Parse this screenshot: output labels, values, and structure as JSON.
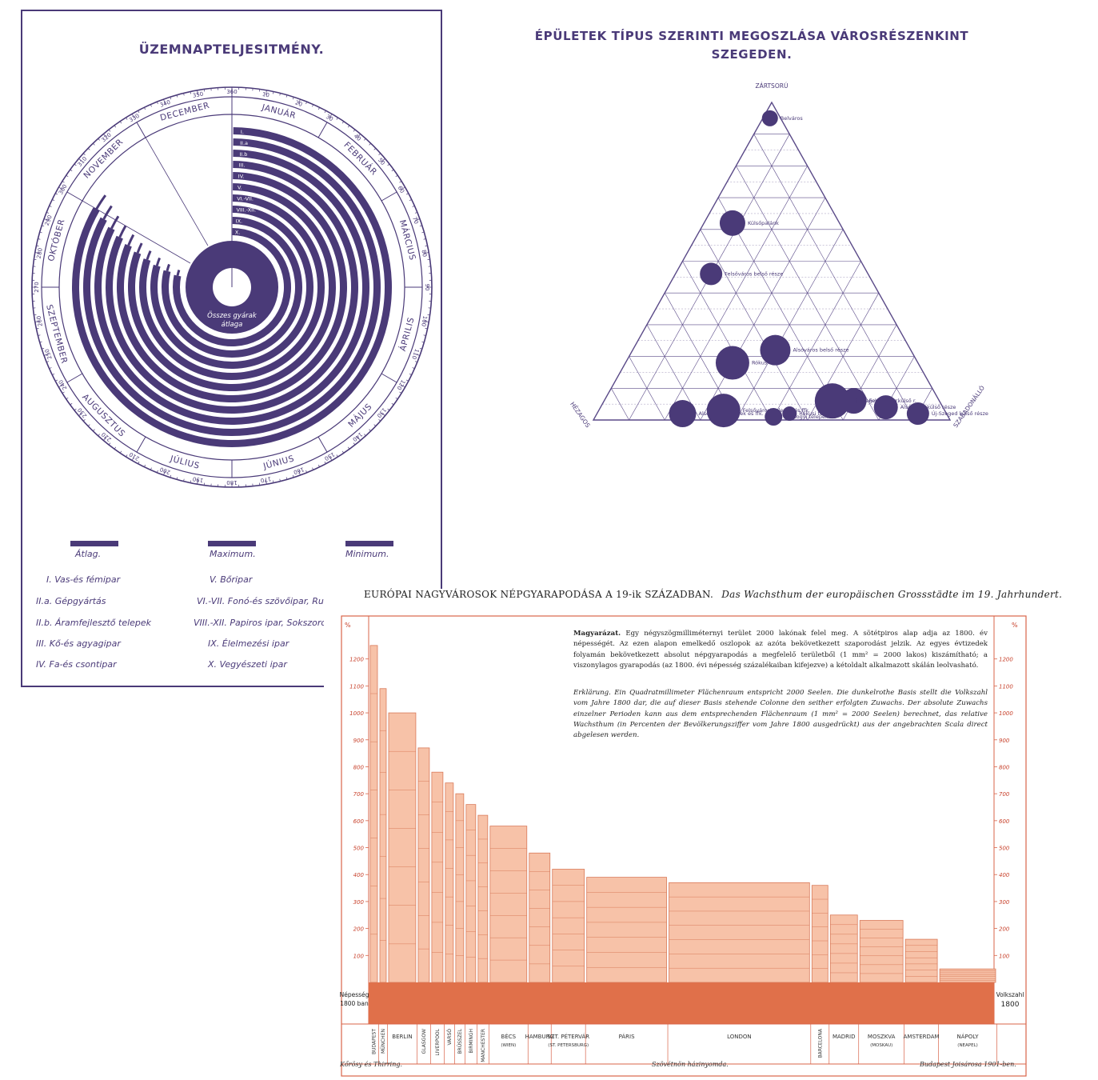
{
  "circular_chart": {
    "title": "ÜZEMNAPTELJESITMÉNY.",
    "months": [
      "JANUÁR",
      "FEBRUÁR",
      "MÁRCIUS",
      "ÁPRILIS",
      "MÁJUS",
      "JÚNIUS",
      "JÚLIUS",
      "AUGUSZTUS",
      "SZEPTEMBER",
      "OKTÓBER",
      "NOVEMBER",
      "DECEMBER"
    ],
    "scale_labels": [
      "10",
      "20",
      "30",
      "40",
      "50",
      "60",
      "70",
      "80",
      "90",
      "100",
      "110",
      "120",
      "130",
      "140",
      "150",
      "160",
      "170",
      "180",
      "190",
      "200",
      "210",
      "220",
      "230",
      "240",
      "250",
      "260",
      "270",
      "280",
      "290",
      "300",
      "310",
      "320",
      "330",
      "340",
      "350",
      "360"
    ],
    "ring_labels": [
      "I.",
      "II.a",
      "II.b",
      "III.",
      "IV.",
      "V.",
      "VI.-VII.",
      "VIII.-XII.",
      "IX.",
      "X."
    ],
    "center_label": [
      "Összes gyárak",
      "átlaga"
    ],
    "legend": [
      {
        "label": "Átlag."
      },
      {
        "label": "Maximum."
      },
      {
        "label": "Minimum."
      }
    ],
    "industries": [
      "I. Vas-és fémipar",
      "II.a. Gépgyártás",
      "II.b. Áramfejlesztő telepek",
      "III. Kő-és agyagipar",
      "IV. Fa-és csontipar",
      "V. Bőripar",
      "VI.-VII. Fonó-és szövőipar, Ruház",
      "VIII.-XII. Papiros ipar, Sokszoros",
      "IX. Élelmezési ipar",
      "X. Vegyészeti ipar"
    ],
    "colors": {
      "ink": "#4a3a78"
    }
  },
  "ternary_chart": {
    "title": [
      "ÉPÜLETEK TÍPUS SZERINTI MEGOSZLÁSA VÁROSRÉSZENKINT",
      "SZEGEDEN."
    ],
    "vertices": {
      "top": "ZÁRTSORÚ",
      "left": "HÉZAGOS",
      "right": "SZABADONÁLLÓ"
    },
    "points": [
      {
        "name": "Belváros"
      },
      {
        "name": "Külsőpalánk"
      },
      {
        "name": "Felsőváros belső része"
      },
      {
        "name": "Alsóváros belső része"
      },
      {
        "name": "Rókus"
      },
      {
        "name": "Felsőváros külső r."
      },
      {
        "name": "Új-Szeged belső r."
      },
      {
        "name": "Alsóváros külső része"
      },
      {
        "name": "Alsóvárosi telepek és ffk."
      },
      {
        "name": "Felsővárosi telepek és ffk."
      },
      {
        "name": "Rókusi telepek"
      },
      {
        "name": "Somogyi telepek"
      },
      {
        "name": "Új-Szeged külső része"
      }
    ],
    "colors": {
      "ink": "#4a3a78",
      "grid": "#5a4a88"
    }
  },
  "growth_chart": {
    "title_hu": "EURÓPAI NAGYVÁROSOK NÉPGYARAPODÁSA A 19-ik SZÁZADBAN.",
    "title_de": "Das Wachsthum der europäischen Grossstädte im 19. Jahrhundert.",
    "note_hu_label": "Magyarázat.",
    "note_hu": "Egy négyszögmilliméternyi terület 2000 lakónak felel meg. A sötétpiros alap adja az 1800. év népességét. Az ezen alapon emelkedő oszlopok az azóta bekövetkezett szaporodást jelzik. Az egyes évtizedek folyamán bekövetkezett absolut népgyarapodás a megfelelő területből (1 mm² = 2000 lakos) kiszámítható; a viszonylagos gyarapodás (az 1800. évi népesség százalékaiban kifejezve) a kétoldalt alkalmazott skálán leolvasható.",
    "note_de_label": "Erklärung.",
    "note_de": "Ein Quadratmillimeter Flächenraum entspricht 2000 Seelen. Die dunkelrothe Basis stellt die Volkszahl vom Jahre 1800 dar, die auf dieser Basis stehende Colonne den seither erfolgten Zuwachs. Der absolute Zuwachs einzelner Perioden kann aus dem entsprechenden Flächenraum (1 mm² = 2000 Seelen) berechnet, das relative Wachsthum (in Percenten der Bevölkerungsziffer vom Jahre 1800 ausgedrückt) aus der angebrachten Scala direct abgelesen werden.",
    "axis_unit": "%",
    "base_left": [
      "Népesség",
      "1800 ban"
    ],
    "base_right": [
      "Volkszahl",
      "1800"
    ],
    "footer": [
      "Kőrösy és Thirring.",
      "Szövétnön házinyomda.",
      "Budapest Joisárosa 1901-ben."
    ],
    "colors": {
      "base": "#e0704a",
      "bar": "#f7c2a8",
      "bar_edge": "#d97a5a",
      "line": "#d8644a",
      "text": "#c8422c"
    }
  },
  "chart_data": [
    {
      "type": "area",
      "title": "ÜZEMNAPTELJESITMÉNY.",
      "ring_labels": [
        "I.",
        "II.a",
        "II.b",
        "III.",
        "IV.",
        "V.",
        "VI.-VII.",
        "VIII.-XII.",
        "IX.",
        "X."
      ],
      "scale": [
        0,
        360
      ],
      "legend": [
        "Átlag.",
        "Maximum.",
        "Minimum."
      ]
    },
    {
      "type": "scatter",
      "title": "ÉPÜLETEK TÍPUS SZERINTI MEGOSZLÁSA VÁROSRÉSZENKINT SZEGEDEN.",
      "axes": [
        "ZÁRTSORÚ",
        "HÉZAGOS",
        "SZABADONÁLLÓ"
      ],
      "series": [
        {
          "values": [
            {
              "label": "Belváros",
              "z": 0.95,
              "h": 0.03,
              "s": 0.02
            },
            {
              "label": "Külsőpalánk",
              "z": 0.62,
              "h": 0.3,
              "s": 0.08
            },
            {
              "label": "Felsőváros belső része",
              "z": 0.46,
              "h": 0.44,
              "s": 0.1
            },
            {
              "label": "Alsóváros belső része",
              "z": 0.22,
              "h": 0.38,
              "s": 0.4
            },
            {
              "label": "Rókus",
              "z": 0.18,
              "h": 0.52,
              "s": 0.3
            },
            {
              "label": "Felsőváros külső r.",
              "z": 0.06,
              "h": 0.24,
              "s": 0.7
            },
            {
              "label": "Új-Szeged belső r.",
              "z": 0.06,
              "h": 0.3,
              "s": 0.64
            },
            {
              "label": "Alsóváros külső része",
              "z": 0.04,
              "h": 0.16,
              "s": 0.8
            },
            {
              "label": "Alsóvárosi telepek és ffk.",
              "z": 0.02,
              "h": 0.74,
              "s": 0.24
            },
            {
              "label": "Felsővárosi telepek és ffk.",
              "z": 0.03,
              "h": 0.62,
              "s": 0.35
            },
            {
              "label": "Rókusi telepek",
              "z": 0.02,
              "h": 0.44,
              "s": 0.54
            },
            {
              "label": "Somogyi telepek",
              "z": 0.01,
              "h": 0.49,
              "s": 0.5
            },
            {
              "label": "Új-Szeged külső része",
              "z": 0.02,
              "h": 0.08,
              "s": 0.9
            }
          ]
        }
      ]
    },
    {
      "type": "bar",
      "title": "EURÓPAI NAGYVÁROSOK NÉPGYARAPODÁSA A 19-ik SZÁZADBAN.",
      "categories": [
        "BUDAPEST",
        "MÜNCHEN",
        "BERLIN",
        "GLASGOW",
        "LIVERPOOL",
        "VARSÓ",
        "BRÜSSZEL",
        "BIRMINGH",
        "MANCHESTER",
        "BÉCS",
        "HAMBURG",
        "SZT. PÉTERVÁR",
        "PÁRIS",
        "LONDON",
        "BARCELONA",
        "MADRID",
        "MOSZKVA",
        "AMSTERDAM",
        "NÁPOLY"
      ],
      "category_sub": [
        "",
        "",
        "",
        "",
        "",
        "",
        "",
        "",
        "",
        "(WIEN)",
        "",
        "(ST. PETERSBURG)",
        "",
        "",
        "",
        "",
        "(MOSKAU)",
        "",
        "(NEAPEL)"
      ],
      "values": [
        1250,
        1090,
        1000,
        870,
        780,
        740,
        700,
        660,
        620,
        580,
        480,
        420,
        390,
        370,
        360,
        250,
        230,
        160,
        50
      ],
      "ylabel": "%",
      "ylim": [
        0,
        1300
      ],
      "yticks": [
        100,
        200,
        300,
        400,
        500,
        600,
        700,
        800,
        900,
        1000,
        1100,
        1200
      ]
    }
  ]
}
